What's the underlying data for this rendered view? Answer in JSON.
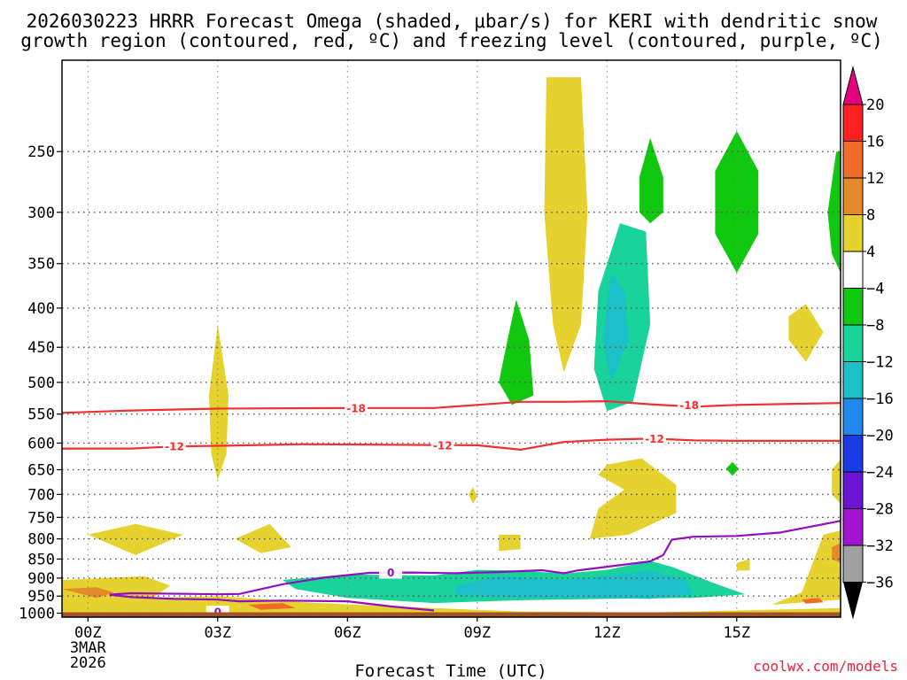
{
  "chart_data": {
    "type": "time-height contour/shaded",
    "title_line1": "2026030223 HRRR Forecast Omega (shaded, μbar/s) for KERI with dendritic snow",
    "title_line2": "growth region (contoured, red, ºC) and freezing level (contoured, purple, ºC)",
    "xlabel": "Forecast Time (UTC)",
    "x_ticks": [
      {
        "hour": 0,
        "label": "00Z",
        "sub1": "3MAR",
        "sub2": "2026"
      },
      {
        "hour": 3,
        "label": "03Z"
      },
      {
        "hour": 6,
        "label": "06Z"
      },
      {
        "hour": 9,
        "label": "09Z"
      },
      {
        "hour": 12,
        "label": "12Z"
      },
      {
        "hour": 15,
        "label": "15Z"
      }
    ],
    "x_range_hours": [
      -0.6,
      17.4
    ],
    "y_ticks_hpa": [
      250,
      300,
      350,
      400,
      450,
      500,
      550,
      600,
      650,
      700,
      750,
      800,
      850,
      900,
      950,
      1000
    ],
    "colorbar": {
      "labels": [
        "20",
        "16",
        "12",
        "8",
        "4",
        "−4",
        "−8",
        "−12",
        "−16",
        "−20",
        "−24",
        "−28",
        "−32",
        "−36"
      ],
      "colors": [
        "#ff2020",
        "#f06a2a",
        "#e58a28",
        "#e6b22e",
        "#e6d22e",
        "#ffffff",
        "#10c810",
        "#18d49a",
        "#1cc0c8",
        "#1e8af0",
        "#1a3ae6",
        "#6a14d4",
        "#a214d0",
        "#a0a0a0"
      ],
      "top_arrow_color": "#e6007e",
      "bottom_arrow_color": "#000000"
    },
    "omega_positive_regions": [
      {
        "desc": "tall plume near 11Z",
        "hour": 11.0,
        "p_top": 200,
        "p_bottom": 485,
        "value": 6
      },
      {
        "desc": "narrow plume near 03Z",
        "hour": 3.0,
        "p_top": 420,
        "p_bottom": 670,
        "value": 6
      },
      {
        "desc": "cell near 01Z low levels",
        "hour": 1.1,
        "p_top": 760,
        "p_bottom": 840,
        "value": 6
      },
      {
        "desc": "cell near 04Z",
        "hour": 4.0,
        "p_top": 760,
        "p_bottom": 840,
        "value": 6
      },
      {
        "desc": "mid-level near 12-13Z",
        "hour": 12.8,
        "p_top": 630,
        "p_bottom": 800,
        "value": 6
      },
      {
        "desc": "near-surface band",
        "hour": 3.0,
        "p_top": 940,
        "p_bottom": 1000,
        "value": 8
      },
      {
        "desc": "cell near 16.5Z",
        "hour": 16.6,
        "p_top": 400,
        "p_bottom": 470,
        "value": 6
      }
    ],
    "omega_negative_regions": [
      {
        "desc": "low-level ascent band",
        "hour_start": 4.5,
        "hour_end": 15.2,
        "p_top": 880,
        "p_bottom": 960,
        "value": -10
      },
      {
        "desc": "core of ascent band",
        "hour_start": 8.5,
        "hour_end": 14.0,
        "p_top": 900,
        "p_bottom": 960,
        "value": -14
      },
      {
        "desc": "upper plume near 12Z",
        "hour": 12.0,
        "p_top": 310,
        "p_bottom": 545,
        "value": -10
      },
      {
        "desc": "core near 12Z",
        "hour": 12.2,
        "p_top": 360,
        "p_bottom": 500,
        "value": -13
      },
      {
        "desc": "plume near 9.8Z",
        "hour": 9.8,
        "p_top": 390,
        "p_bottom": 535,
        "value": -6
      },
      {
        "desc": "cell near 13Z aloft",
        "hour": 13.0,
        "p_top": 240,
        "p_bottom": 310,
        "value": -6
      },
      {
        "desc": "cell near 15Z aloft",
        "hour": 15.0,
        "p_top": 235,
        "p_bottom": 360,
        "value": -6
      },
      {
        "desc": "edge cell near 17.3Z aloft",
        "hour": 17.3,
        "p_top": 250,
        "p_bottom": 360,
        "value": -6
      }
    ],
    "contours": {
      "minus18_hpa": [
        [
          -0.6,
          548
        ],
        [
          1,
          544
        ],
        [
          3,
          541
        ],
        [
          6,
          540
        ],
        [
          8,
          540
        ],
        [
          9,
          535
        ],
        [
          10,
          530
        ],
        [
          11,
          530
        ],
        [
          12,
          529
        ],
        [
          13,
          534
        ],
        [
          14,
          538
        ],
        [
          15,
          535
        ],
        [
          17.4,
          532
        ]
      ],
      "minus12_hpa": [
        [
          -0.6,
          610
        ],
        [
          1,
          610
        ],
        [
          2,
          606
        ],
        [
          3,
          605
        ],
        [
          5,
          602
        ],
        [
          7,
          603
        ],
        [
          9,
          604
        ],
        [
          10,
          612
        ],
        [
          11,
          598
        ],
        [
          12,
          594
        ],
        [
          13,
          592
        ],
        [
          14,
          595
        ],
        [
          15,
          596
        ],
        [
          17.4,
          596
        ]
      ],
      "freezing_0C_hpa": [
        [
          0.5,
          946
        ],
        [
          1,
          942
        ],
        [
          2.5,
          944
        ],
        [
          3,
          945
        ],
        [
          3.5,
          944
        ],
        [
          4.5,
          917
        ],
        [
          5.5,
          898
        ],
        [
          6.5,
          886
        ],
        [
          7.5,
          885
        ],
        [
          8.5,
          887
        ],
        [
          9.5,
          884
        ],
        [
          10.5,
          879
        ],
        [
          11,
          887
        ],
        [
          11.3,
          880
        ],
        [
          12,
          870
        ],
        [
          13,
          856
        ],
        [
          13.3,
          840
        ],
        [
          13.5,
          802
        ],
        [
          14,
          795
        ],
        [
          15,
          793
        ],
        [
          16,
          785
        ],
        [
          17.4,
          758
        ]
      ],
      "freezing_0C_lower_hpa": [
        [
          0.5,
          946
        ],
        [
          1,
          953
        ],
        [
          2,
          958
        ],
        [
          3,
          960
        ],
        [
          3.5,
          965
        ],
        [
          4.5,
          963
        ],
        [
          6,
          965
        ],
        [
          7,
          980
        ],
        [
          8,
          992
        ]
      ],
      "labels": [
        {
          "text": "-18",
          "hour": 6.2,
          "p": 540,
          "color": "#ee3030"
        },
        {
          "text": "-18",
          "hour": 13.9,
          "p": 535,
          "color": "#ee3030"
        },
        {
          "text": "-12",
          "hour": 2.0,
          "p": 606,
          "color": "#ee3030"
        },
        {
          "text": "-12",
          "hour": 8.2,
          "p": 604,
          "color": "#ee3030"
        },
        {
          "text": "-12",
          "hour": 13.1,
          "p": 592,
          "color": "#ee3030"
        },
        {
          "text": "0",
          "hour": 7.0,
          "p": 885,
          "color": "#9010c0"
        },
        {
          "text": "0",
          "hour": 3.0,
          "p": 996,
          "color": "#9010c0"
        }
      ]
    },
    "ground_color": "#a0522d"
  },
  "credit": "coolwx.com/models"
}
